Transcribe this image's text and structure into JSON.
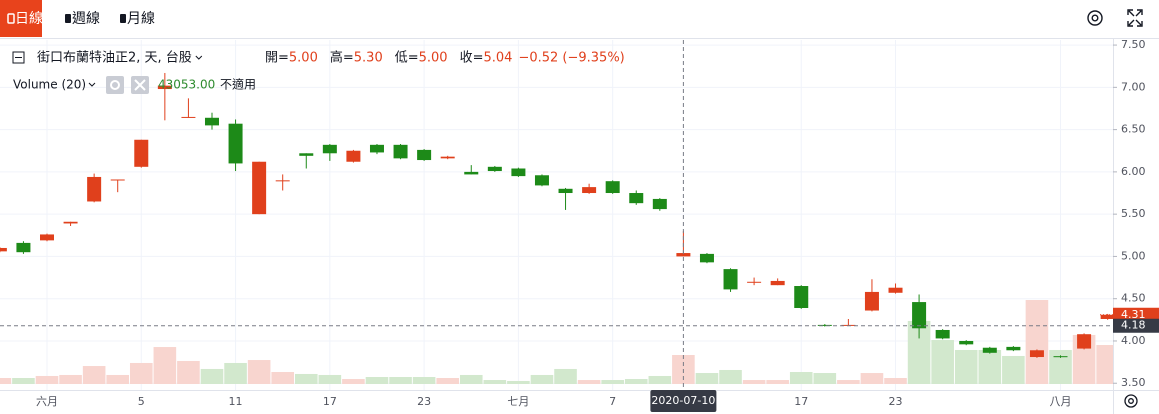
{
  "tabs": [
    "日線",
    "週線",
    "月線"
  ],
  "chart_data": {
    "type": "candlestick",
    "legend": {
      "symbol": "街口布蘭特油正2, 天, 台股",
      "ohlc": [
        {
          "label": "開=",
          "value": "5.00"
        },
        {
          "label": "高=",
          "value": "5.30"
        },
        {
          "label": "低=",
          "value": "5.00"
        },
        {
          "label": "收=",
          "value": "5.04"
        }
      ],
      "change": "−0.52 (−9.35%)"
    },
    "volume_legend": {
      "name": "Volume (20)",
      "value": "43053.00",
      "note": "不適用"
    },
    "categories": [
      null,
      null,
      "六月",
      null,
      null,
      null,
      "5",
      null,
      null,
      null,
      "11",
      null,
      null,
      null,
      "17",
      null,
      null,
      null,
      "23",
      null,
      null,
      null,
      "七月",
      null,
      null,
      null,
      "7",
      null,
      null,
      "2020-07-10",
      null,
      null,
      null,
      null,
      "17",
      null,
      null,
      null,
      "23",
      null,
      null,
      null,
      null,
      null,
      null,
      "八月",
      null,
      null
    ],
    "open": [
      5.06,
      5.16,
      5.19,
      5.39,
      5.65,
      5.9,
      6.06,
      6.98,
      6.64,
      6.64,
      6.57,
      5.5,
      5.89,
      6.22,
      6.32,
      6.12,
      6.32,
      6.32,
      6.26,
      6.16,
      6.0,
      6.06,
      6.04,
      5.96,
      5.8,
      5.75,
      5.89,
      5.75,
      5.68,
      5.0,
      5.03,
      4.85,
      4.69,
      4.66,
      4.65,
      4.19,
      4.18,
      4.36,
      4.57,
      4.46,
      4.13,
      4.0,
      3.92,
      3.93,
      3.81,
      3.82,
      3.91,
      4.26
    ],
    "high": [
      5.11,
      5.18,
      5.27,
      5.41,
      5.98,
      5.91,
      6.38,
      7.17,
      6.87,
      6.7,
      6.62,
      6.12,
      5.97,
      6.22,
      6.33,
      6.26,
      6.33,
      6.33,
      6.27,
      6.19,
      6.08,
      6.07,
      6.05,
      5.97,
      5.81,
      5.86,
      5.9,
      5.78,
      5.69,
      5.3,
      5.04,
      4.86,
      4.75,
      4.74,
      4.66,
      4.2,
      4.26,
      4.73,
      4.68,
      4.55,
      4.14,
      4.01,
      3.93,
      3.94,
      3.9,
      3.83,
      4.09,
      4.32
    ],
    "low": [
      5.05,
      5.03,
      5.18,
      5.36,
      5.64,
      5.76,
      6.05,
      6.61,
      6.64,
      6.5,
      6.01,
      5.5,
      5.78,
      6.04,
      6.13,
      6.11,
      6.21,
      6.15,
      6.13,
      6.15,
      5.97,
      6.0,
      5.94,
      5.83,
      5.55,
      5.74,
      5.74,
      5.61,
      5.54,
      5.0,
      4.92,
      4.58,
      4.66,
      4.66,
      4.38,
      4.17,
      4.18,
      4.35,
      4.56,
      4.03,
      4.02,
      3.95,
      3.85,
      3.88,
      3.8,
      3.8,
      3.9,
      4.25
    ],
    "close": [
      5.1,
      5.05,
      5.26,
      5.41,
      5.94,
      5.91,
      6.38,
      7.02,
      6.65,
      6.55,
      6.1,
      6.12,
      5.9,
      6.19,
      6.22,
      6.25,
      6.23,
      6.16,
      6.14,
      6.18,
      5.97,
      6.01,
      5.95,
      5.84,
      5.75,
      5.82,
      5.75,
      5.63,
      5.56,
      5.04,
      4.93,
      4.61,
      4.7,
      4.71,
      4.39,
      4.18,
      4.19,
      4.58,
      4.63,
      4.15,
      4.03,
      3.96,
      3.86,
      3.89,
      3.89,
      3.81,
      4.08,
      4.31
    ],
    "volume": [
      8900,
      8900,
      11900,
      13400,
      26700,
      13400,
      31200,
      54900,
      34200,
      22300,
      31200,
      35600,
      17800,
      14900,
      13400,
      7400,
      10400,
      10400,
      10400,
      8900,
      13400,
      5900,
      4500,
      13400,
      22300,
      5900,
      5900,
      7400,
      11900,
      43053,
      16300,
      20800,
      5900,
      5900,
      17800,
      16300,
      5900,
      16300,
      8900,
      93600,
      65300,
      50500,
      50500,
      41600,
      124700,
      50500,
      72800,
      57900
    ],
    "up_color": "#e0401c",
    "down_color": "#1d8a18",
    "volume_up_color": "#f8d5cf",
    "volume_down_color": "#d2e8cd",
    "ylim": [
      3.42,
      7.56
    ],
    "yticks": [
      {
        "value": 3.5,
        "label": "3.50"
      },
      {
        "value": 4,
        "label": "4.00"
      },
      {
        "value": 4.5,
        "label": "4.50"
      },
      {
        "value": 5,
        "label": "5.00"
      },
      {
        "value": 5.5,
        "label": "5.50"
      },
      {
        "value": 6,
        "label": "6.00"
      },
      {
        "value": 6.5,
        "label": "6.50"
      },
      {
        "value": 7,
        "label": "7.00"
      },
      {
        "value": 7.5,
        "label": "7.50"
      }
    ],
    "grid": true,
    "last_price": {
      "value": 4.31,
      "label": "4.31"
    },
    "crosshair": {
      "category": "2020-07-10",
      "price": {
        "value": 4.18,
        "label": "4.18"
      }
    }
  }
}
